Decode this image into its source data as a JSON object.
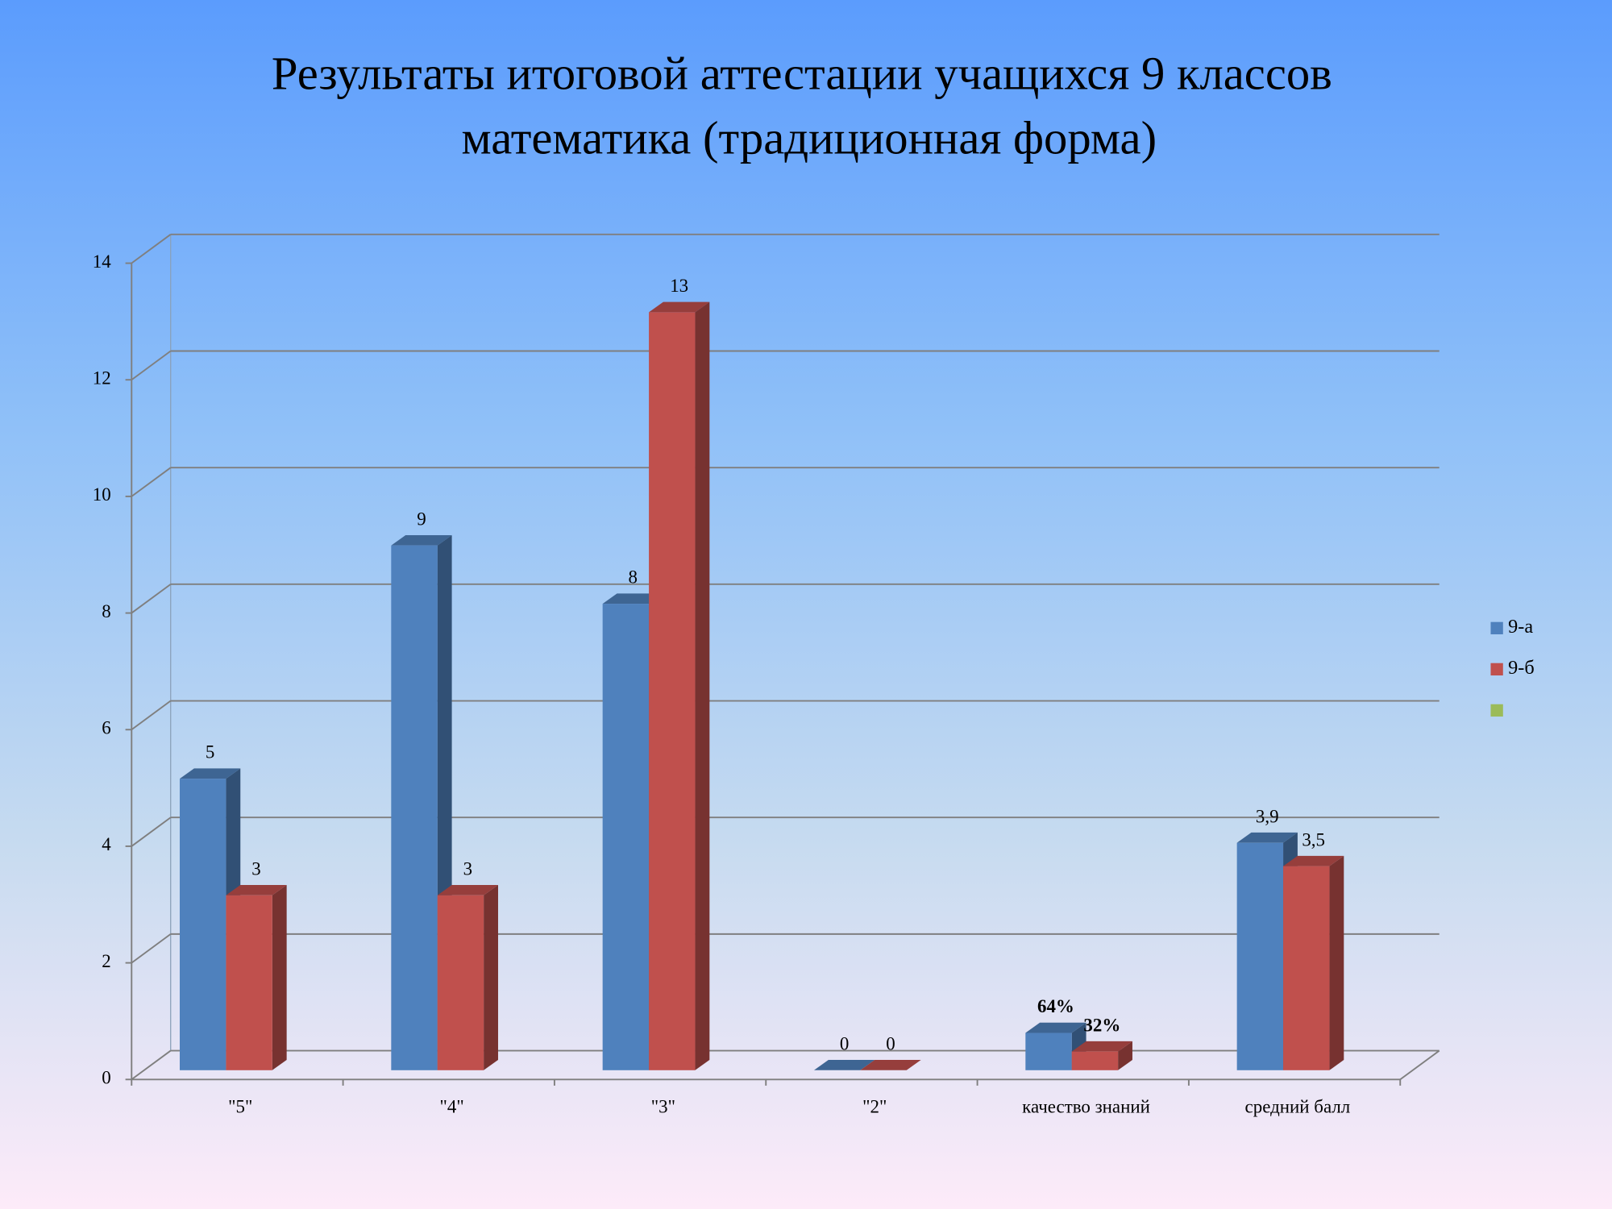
{
  "chart_data": {
    "type": "bar3d",
    "title": "Результаты итоговой аттестации учащихся 9 классов",
    "subtitle": "математика (традиционная форма)",
    "categories": [
      "\"5\"",
      "\"4\"",
      "\"3\"",
      "\"2\"",
      "качество знаний",
      "средний балл"
    ],
    "series": [
      {
        "name": "9-а",
        "color": "#4f81bd",
        "values": [
          5,
          9,
          8,
          0,
          0.64,
          3.9
        ],
        "value_labels": [
          "5",
          "9",
          "8",
          "0",
          "64%",
          "3,9"
        ]
      },
      {
        "name": "9-б",
        "color": "#c0504d",
        "values": [
          3,
          3,
          13,
          0,
          0.32,
          3.5
        ],
        "value_labels": [
          "3",
          "3",
          "13",
          "0",
          "32%",
          "3,5"
        ]
      },
      {
        "name": null,
        "color": "#9bbb59",
        "values": [
          null,
          null,
          null,
          null,
          null,
          null
        ]
      }
    ],
    "ylim": [
      0,
      14
    ],
    "yticks": [
      0,
      2,
      4,
      6,
      8,
      10,
      12,
      14
    ],
    "grid": true,
    "legend": "right"
  }
}
